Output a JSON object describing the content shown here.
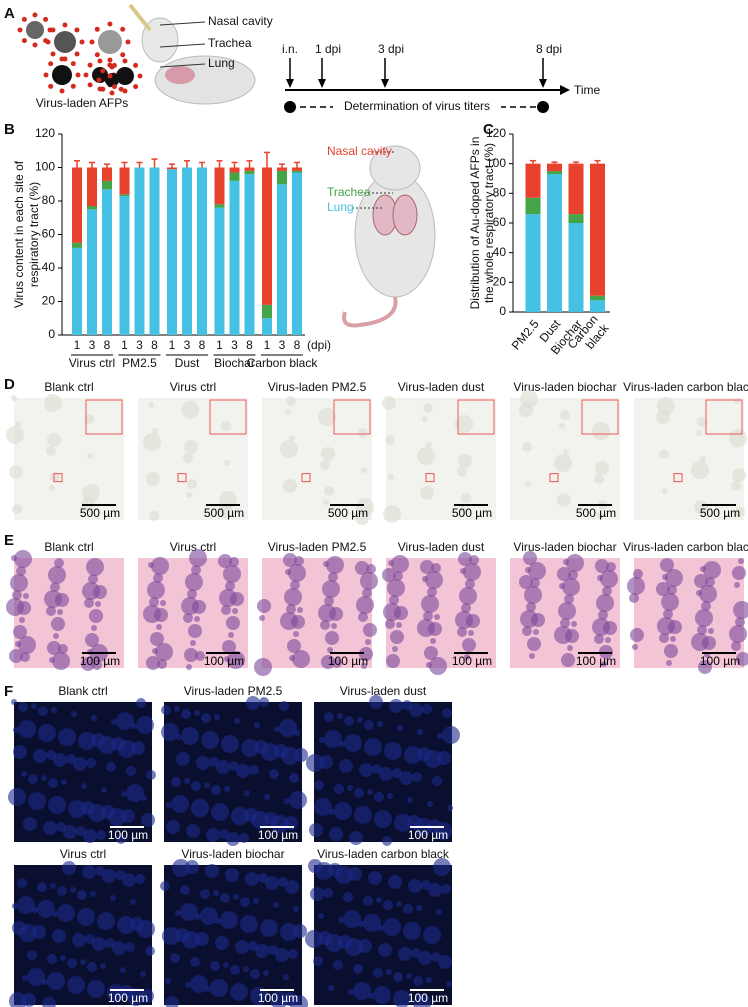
{
  "panel_labels": [
    "A",
    "B",
    "C",
    "D",
    "E",
    "F"
  ],
  "panel_a": {
    "mouse_labels": [
      "Nasal cavity",
      "Trachea",
      "Lung"
    ],
    "particles_label": "Virus-laden AFPs",
    "events": [
      "i.n.",
      "1 dpi",
      "3 dpi",
      "8 dpi"
    ],
    "axis_label": "Time",
    "titer_label": "Determination of virus titers"
  },
  "chart_data": [
    {
      "type": "stacked_bar",
      "y_label": [
        "Virus content in each site of",
        "respiratory tract (%)"
      ],
      "categories": [
        "1",
        "3",
        "8",
        "1",
        "3",
        "8",
        "1",
        "3",
        "8",
        "1",
        "3",
        "8",
        "1",
        "3",
        "8"
      ],
      "groups": [
        "Virus ctrl",
        "PM2.5",
        "Dust",
        "Biochar",
        "Carbon black"
      ],
      "x_label": "(dpi)",
      "series": [
        {
          "name": "Lung",
          "color": "#45c1e3",
          "values": [
            52,
            75,
            87,
            83,
            100,
            100,
            99,
            100,
            100,
            76,
            92,
            96,
            10,
            90,
            97
          ]
        },
        {
          "name": "Trachea",
          "color": "#43a548",
          "values": [
            3,
            2,
            5,
            1,
            0,
            0,
            0,
            0,
            0,
            2,
            5,
            2,
            8,
            8,
            1
          ]
        },
        {
          "name": "Nasal cavity",
          "color": "#e8412d",
          "values": [
            45,
            23,
            8,
            16,
            0,
            0,
            1,
            0,
            0,
            22,
            3,
            2,
            82,
            2,
            2
          ],
          "errors": [
            4,
            3,
            2,
            3,
            3,
            5,
            2,
            4,
            3,
            4,
            3,
            4,
            9,
            2,
            3
          ]
        }
      ],
      "ylim": [
        0,
        120
      ],
      "yticks": [
        0,
        20,
        40,
        60,
        80,
        100,
        120
      ]
    },
    {
      "type": "stacked_bar",
      "y_label": [
        "Distribution of Au-doped AFPs in",
        "the whole respiratory tract (%)"
      ],
      "categories": [
        "PM2.5",
        "Dust",
        "Biochar",
        "Carbon black"
      ],
      "series": [
        {
          "name": "Lung",
          "color": "#45c1e3",
          "values": [
            66,
            93,
            60,
            8
          ]
        },
        {
          "name": "Trachea",
          "color": "#43a548",
          "values": [
            11,
            2,
            6,
            3
          ]
        },
        {
          "name": "Nasal cavity",
          "color": "#e8412d",
          "values": [
            23,
            5,
            34,
            89
          ],
          "errors": [
            2,
            1,
            1,
            2
          ]
        }
      ],
      "ylim": [
        0,
        120
      ],
      "yticks": [
        0,
        20,
        40,
        60,
        80,
        100,
        120
      ]
    }
  ],
  "panel_d": {
    "captions": [
      "Blank ctrl",
      "Virus ctrl",
      "Virus-laden PM2.5",
      "Virus-laden dust",
      "Virus-laden biochar",
      "Virus-laden carbon black"
    ],
    "scale_bar": "500 µm"
  },
  "panel_e": {
    "captions": [
      "Blank ctrl",
      "Virus ctrl",
      "Virus-laden PM2.5",
      "Virus-laden dust",
      "Virus-laden biochar",
      "Virus-laden carbon black"
    ],
    "scale_bar": "100 µm"
  },
  "panel_f": {
    "captions": [
      "Blank ctrl",
      "Virus-laden PM2.5",
      "Virus-laden dust",
      "Virus ctrl",
      "Virus-laden biochar",
      "Virus-laden carbon black"
    ],
    "scale_bar": "100 µm"
  }
}
